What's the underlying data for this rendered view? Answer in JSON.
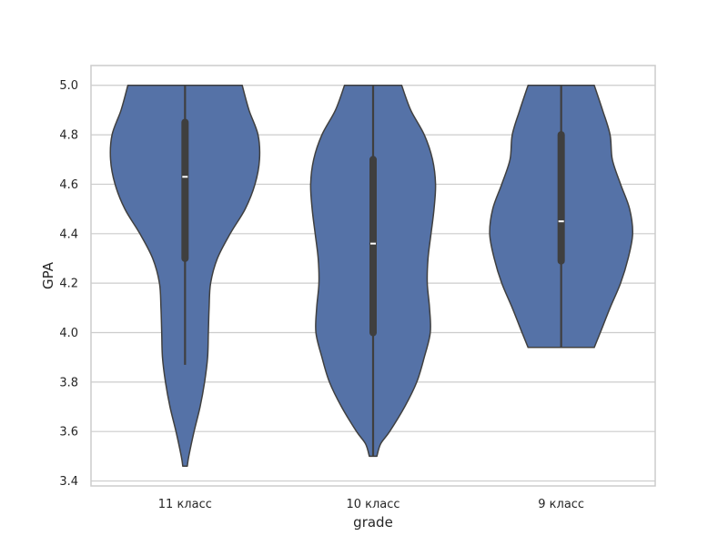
{
  "chart_data": {
    "type": "violin",
    "title": "",
    "xlabel": "grade",
    "ylabel": "GPA",
    "ylim": [
      3.38,
      5.08
    ],
    "yticks": [
      "3.4",
      "3.6",
      "3.8",
      "4.0",
      "4.2",
      "4.4",
      "4.6",
      "4.8",
      "5.0"
    ],
    "grid": "horizontal",
    "categories": [
      "11 класс",
      "10 класс",
      "9 класс"
    ],
    "colors": {
      "violin_fill": "#5572a7",
      "violin_edge": "#404040",
      "box": "#3f3f3f",
      "median": "#ffffff",
      "grid": "#cccccc",
      "frame": "#cccccc"
    },
    "violins": [
      {
        "category": "11 класс",
        "min": 3.46,
        "q1": 4.3,
        "median": 4.63,
        "q3": 4.85,
        "max": 5.0,
        "whisker_low": 3.87,
        "whisker_high": 5.0,
        "profile": [
          [
            3.46,
            0.03
          ],
          [
            3.5,
            0.05
          ],
          [
            3.6,
            0.12
          ],
          [
            3.7,
            0.2
          ],
          [
            3.8,
            0.26
          ],
          [
            3.9,
            0.3
          ],
          [
            4.0,
            0.31
          ],
          [
            4.1,
            0.32
          ],
          [
            4.2,
            0.34
          ],
          [
            4.3,
            0.43
          ],
          [
            4.4,
            0.6
          ],
          [
            4.5,
            0.8
          ],
          [
            4.6,
            0.93
          ],
          [
            4.7,
            0.99
          ],
          [
            4.8,
            0.97
          ],
          [
            4.9,
            0.85
          ],
          [
            5.0,
            0.76
          ]
        ]
      },
      {
        "category": "10 класс",
        "min": 3.5,
        "q1": 4.0,
        "median": 4.36,
        "q3": 4.7,
        "max": 5.0,
        "whisker_low": 3.5,
        "whisker_high": 5.0,
        "profile": [
          [
            3.5,
            0.05
          ],
          [
            3.55,
            0.1
          ],
          [
            3.6,
            0.22
          ],
          [
            3.7,
            0.42
          ],
          [
            3.8,
            0.58
          ],
          [
            3.9,
            0.68
          ],
          [
            4.0,
            0.76
          ],
          [
            4.1,
            0.75
          ],
          [
            4.2,
            0.72
          ],
          [
            4.3,
            0.73
          ],
          [
            4.4,
            0.77
          ],
          [
            4.5,
            0.81
          ],
          [
            4.6,
            0.83
          ],
          [
            4.7,
            0.79
          ],
          [
            4.8,
            0.68
          ],
          [
            4.9,
            0.5
          ],
          [
            5.0,
            0.38
          ]
        ]
      },
      {
        "category": "9 класс",
        "min": 3.94,
        "q1": 4.29,
        "median": 4.45,
        "q3": 4.8,
        "max": 5.0,
        "whisker_low": 3.94,
        "whisker_high": 5.0,
        "profile": [
          [
            3.94,
            0.44
          ],
          [
            4.0,
            0.52
          ],
          [
            4.1,
            0.65
          ],
          [
            4.2,
            0.79
          ],
          [
            4.3,
            0.89
          ],
          [
            4.4,
            0.95
          ],
          [
            4.5,
            0.91
          ],
          [
            4.6,
            0.79
          ],
          [
            4.7,
            0.68
          ],
          [
            4.8,
            0.65
          ],
          [
            4.9,
            0.55
          ],
          [
            5.0,
            0.44
          ]
        ]
      }
    ]
  }
}
